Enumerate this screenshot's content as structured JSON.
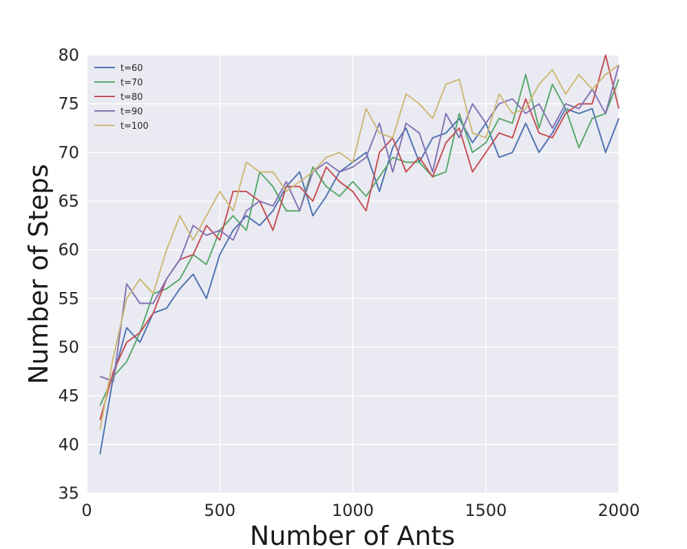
{
  "chart_data": {
    "type": "line",
    "title": "",
    "xlabel": "Number of Ants",
    "ylabel": "Number of Steps",
    "xlim": [
      0,
      2000
    ],
    "ylim": [
      35,
      80
    ],
    "xticks": [
      0,
      500,
      1000,
      1500,
      2000
    ],
    "yticks": [
      35,
      40,
      45,
      50,
      55,
      60,
      65,
      70,
      75,
      80
    ],
    "grid": true,
    "legend_position": "top-left",
    "x": [
      50,
      100,
      150,
      200,
      250,
      300,
      350,
      400,
      450,
      500,
      550,
      600,
      650,
      700,
      750,
      800,
      850,
      900,
      950,
      1000,
      1050,
      1100,
      1150,
      1200,
      1250,
      1300,
      1350,
      1400,
      1450,
      1500,
      1550,
      1600,
      1650,
      1700,
      1750,
      1800,
      1850,
      1900,
      1950,
      2000
    ],
    "series": [
      {
        "name": "t=60",
        "color": "#4c72b0",
        "values": [
          39,
          47,
          52,
          50.5,
          53.5,
          54,
          56,
          57.5,
          55,
          59.5,
          62,
          63.5,
          62.5,
          64,
          66.5,
          68,
          63.5,
          65.5,
          68,
          69,
          70,
          66,
          70.5,
          72.5,
          69,
          71.5,
          72,
          73.5,
          71,
          73,
          69.5,
          70,
          73,
          70,
          72,
          74.5,
          74,
          74.5,
          70,
          73.5
        ]
      },
      {
        "name": "t=70",
        "color": "#55a868",
        "values": [
          44,
          47,
          48.5,
          51.5,
          55.5,
          56,
          57,
          59.5,
          58.5,
          62,
          63.5,
          62,
          68,
          66.5,
          64,
          64,
          68.5,
          66.5,
          65.5,
          67,
          65.5,
          67.5,
          69.5,
          69,
          69,
          67.5,
          68,
          74,
          70,
          71,
          73.5,
          73,
          78,
          72.5,
          77,
          74.5,
          70.5,
          73.5,
          74,
          77.5
        ]
      },
      {
        "name": "t=80",
        "color": "#c44e52",
        "values": [
          42.5,
          47.5,
          50.5,
          51.5,
          53.5,
          57,
          59,
          59.5,
          62.5,
          61,
          66,
          66,
          65,
          62,
          66.5,
          66.5,
          65,
          68.5,
          67,
          66,
          64,
          70,
          71.5,
          68,
          69.5,
          67.5,
          71,
          72.5,
          68,
          70,
          72,
          71.5,
          75.5,
          72,
          71.5,
          74,
          75,
          75,
          80,
          74.5
        ]
      },
      {
        "name": "t=90",
        "color": "#8172b2",
        "values": [
          47,
          46.5,
          56.5,
          54.5,
          54.5,
          57,
          59,
          62.5,
          61.5,
          62,
          61,
          64,
          65,
          64.5,
          67,
          64,
          68,
          69,
          68,
          68.5,
          69.5,
          73,
          68,
          73,
          72,
          68,
          74,
          71.5,
          75,
          73,
          75,
          75.5,
          74,
          75,
          72.5,
          75,
          74.5,
          76.5,
          74,
          79
        ]
      },
      {
        "name": "t=100",
        "color": "#ccb974",
        "values": [
          41.5,
          49,
          55,
          57,
          55.5,
          60,
          63.5,
          61,
          63.5,
          66,
          64,
          69,
          68,
          68,
          66,
          67,
          68,
          69.5,
          70,
          69,
          74.5,
          72,
          71.5,
          76,
          75,
          73.5,
          77,
          77.5,
          72,
          71.5,
          76,
          74,
          74.5,
          77,
          78.5,
          76,
          78,
          76.5,
          78,
          79
        ]
      }
    ]
  }
}
